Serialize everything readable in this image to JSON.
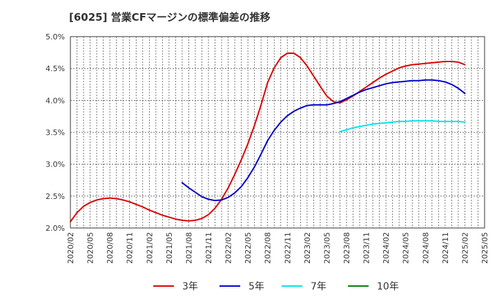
{
  "chart_data": {
    "type": "line",
    "title": "[6025]  営業CFマージンの標準偏差の推移",
    "xlabel": "",
    "ylabel": "",
    "ylim": [
      2.0,
      5.0
    ],
    "yticks": [
      "2.0%",
      "2.5%",
      "3.0%",
      "3.5%",
      "4.0%",
      "4.5%",
      "5.0%"
    ],
    "xticks": [
      "2020/02",
      "2020/05",
      "2020/08",
      "2020/11",
      "2021/02",
      "2021/05",
      "2021/08",
      "2021/11",
      "2022/02",
      "2022/05",
      "2022/08",
      "2022/11",
      "2023/02",
      "2023/05",
      "2023/08",
      "2023/11",
      "2024/02",
      "2024/05",
      "2024/08",
      "2024/11",
      "2025/02",
      "2025/05"
    ],
    "grid": true,
    "legend_position": "bottom",
    "series": [
      {
        "name": "3年",
        "color": "#dd0000",
        "x": [
          "2020/02",
          "2020/03",
          "2020/04",
          "2020/05",
          "2020/06",
          "2020/07",
          "2020/08",
          "2020/09",
          "2020/10",
          "2020/11",
          "2020/12",
          "2021/01",
          "2021/02",
          "2021/03",
          "2021/04",
          "2021/05",
          "2021/06",
          "2021/07",
          "2021/08",
          "2021/09",
          "2021/10",
          "2021/11",
          "2021/12",
          "2022/01",
          "2022/02",
          "2022/03",
          "2022/04",
          "2022/05",
          "2022/06",
          "2022/07",
          "2022/08",
          "2022/09",
          "2022/10",
          "2022/11",
          "2022/12",
          "2023/01",
          "2023/02",
          "2023/03",
          "2023/04",
          "2023/05",
          "2023/06",
          "2023/07",
          "2023/08",
          "2023/09",
          "2023/10",
          "2023/11",
          "2023/12",
          "2024/01",
          "2024/02",
          "2024/03",
          "2024/04",
          "2024/05",
          "2024/06",
          "2024/07",
          "2024/08",
          "2024/09",
          "2024/10",
          "2024/11",
          "2024/12",
          "2025/01",
          "2025/02"
        ],
        "values": [
          2.1,
          2.24,
          2.34,
          2.4,
          2.44,
          2.46,
          2.47,
          2.46,
          2.44,
          2.41,
          2.37,
          2.33,
          2.28,
          2.24,
          2.2,
          2.17,
          2.14,
          2.12,
          2.11,
          2.12,
          2.15,
          2.21,
          2.31,
          2.45,
          2.63,
          2.84,
          3.07,
          3.32,
          3.61,
          3.93,
          4.28,
          4.51,
          4.67,
          4.74,
          4.74,
          4.67,
          4.54,
          4.38,
          4.22,
          4.07,
          3.98,
          3.96,
          4.01,
          4.07,
          4.14,
          4.21,
          4.28,
          4.35,
          4.41,
          4.46,
          4.51,
          4.54,
          4.56,
          4.57,
          4.58,
          4.59,
          4.6,
          4.61,
          4.61,
          4.6,
          4.56
        ]
      },
      {
        "name": "5年",
        "color": "#0000cc",
        "x": [
          "2021/07",
          "2021/08",
          "2021/09",
          "2021/10",
          "2021/11",
          "2021/12",
          "2022/01",
          "2022/02",
          "2022/03",
          "2022/04",
          "2022/05",
          "2022/06",
          "2022/07",
          "2022/08",
          "2022/09",
          "2022/10",
          "2022/11",
          "2022/12",
          "2023/01",
          "2023/02",
          "2023/03",
          "2023/04",
          "2023/05",
          "2023/06",
          "2023/07",
          "2023/08",
          "2023/09",
          "2023/10",
          "2023/11",
          "2023/12",
          "2024/01",
          "2024/02",
          "2024/03",
          "2024/04",
          "2024/05",
          "2024/06",
          "2024/07",
          "2024/08",
          "2024/09",
          "2024/10",
          "2024/11",
          "2024/12",
          "2025/01",
          "2025/02"
        ],
        "values": [
          2.71,
          2.63,
          2.56,
          2.49,
          2.45,
          2.43,
          2.44,
          2.48,
          2.55,
          2.65,
          2.79,
          2.96,
          3.16,
          3.37,
          3.53,
          3.66,
          3.76,
          3.83,
          3.88,
          3.92,
          3.93,
          3.93,
          3.93,
          3.95,
          3.98,
          4.03,
          4.08,
          4.13,
          4.17,
          4.2,
          4.23,
          4.26,
          4.28,
          4.29,
          4.3,
          4.31,
          4.31,
          4.32,
          4.32,
          4.31,
          4.29,
          4.25,
          4.19,
          4.11
        ]
      },
      {
        "name": "7年",
        "color": "#00e5ee",
        "x": [
          "2023/07",
          "2023/08",
          "2023/09",
          "2023/10",
          "2023/11",
          "2023/12",
          "2024/01",
          "2024/02",
          "2024/03",
          "2024/04",
          "2024/05",
          "2024/06",
          "2024/07",
          "2024/08",
          "2024/09",
          "2024/10",
          "2024/11",
          "2024/12",
          "2025/01",
          "2025/02"
        ],
        "values": [
          3.51,
          3.54,
          3.57,
          3.59,
          3.61,
          3.63,
          3.64,
          3.65,
          3.66,
          3.67,
          3.67,
          3.68,
          3.68,
          3.68,
          3.68,
          3.67,
          3.67,
          3.67,
          3.67,
          3.66
        ]
      },
      {
        "name": "10年",
        "color": "#008000",
        "x": [],
        "values": []
      }
    ]
  }
}
